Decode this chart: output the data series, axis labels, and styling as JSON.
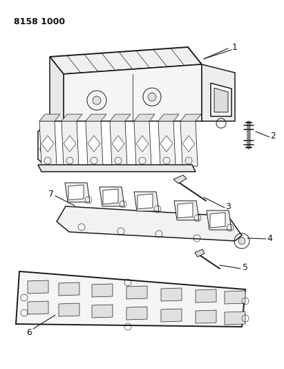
{
  "background_color": "#ffffff",
  "line_color": "#1a1a1a",
  "text_color": "#111111",
  "header_text": "8158 1000",
  "lw_main": 1.1,
  "lw_thin": 0.7,
  "lw_thick": 1.4
}
